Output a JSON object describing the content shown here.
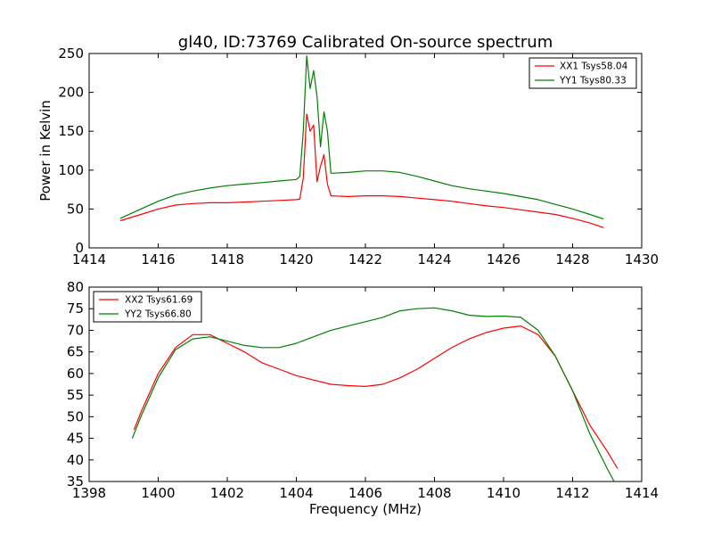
{
  "figure_title": "gl40, ID:73769 Calibrated On-source spectrum",
  "colors": {
    "red": "#ff0000",
    "green": "#008000"
  },
  "chart_data": [
    {
      "type": "line",
      "title": "gl40, ID:73769 Calibrated On-source spectrum",
      "xlabel": "",
      "ylabel": "Power in Kelvin",
      "xlim": [
        1414,
        1430
      ],
      "ylim": [
        0,
        250
      ],
      "xticks": [
        "1414",
        "1416",
        "1418",
        "1420",
        "1422",
        "1424",
        "1426",
        "1428",
        "1430"
      ],
      "yticks": [
        "0",
        "50",
        "100",
        "150",
        "200",
        "250"
      ],
      "legend_position": "top-right",
      "series": [
        {
          "name": "XX1 Tsys58.04",
          "color": "#ff0000",
          "x": [
            1414.9,
            1415.5,
            1416,
            1416.5,
            1417,
            1417.5,
            1418,
            1418.5,
            1419,
            1419.5,
            1420,
            1420.1,
            1420.2,
            1420.3,
            1420.4,
            1420.5,
            1420.6,
            1420.7,
            1420.8,
            1420.9,
            1421,
            1421.5,
            1422,
            1422.5,
            1423,
            1423.5,
            1424,
            1424.5,
            1425,
            1425.5,
            1426,
            1426.5,
            1427,
            1427.5,
            1428,
            1428.5,
            1428.9
          ],
          "y": [
            35,
            43,
            50,
            55,
            57,
            58,
            58,
            59,
            60,
            61,
            62,
            63,
            90,
            172,
            150,
            158,
            85,
            105,
            120,
            82,
            67,
            66,
            67,
            67,
            66,
            64,
            62,
            60,
            57,
            54,
            52,
            49,
            46,
            43,
            38,
            32,
            26
          ]
        },
        {
          "name": "YY1 Tsys80.33",
          "color": "#008000",
          "x": [
            1414.9,
            1415.5,
            1416,
            1416.5,
            1417,
            1417.5,
            1418,
            1418.5,
            1419,
            1419.5,
            1420,
            1420.1,
            1420.2,
            1420.3,
            1420.4,
            1420.5,
            1420.6,
            1420.7,
            1420.8,
            1420.9,
            1421,
            1421.5,
            1422,
            1422.5,
            1423,
            1423.5,
            1424,
            1424.5,
            1425,
            1425.5,
            1426,
            1426.5,
            1427,
            1427.5,
            1428,
            1428.5,
            1428.9
          ],
          "y": [
            38,
            50,
            60,
            68,
            73,
            77,
            80,
            82,
            84,
            86,
            88,
            92,
            150,
            247,
            205,
            228,
            195,
            130,
            175,
            150,
            96,
            97,
            99,
            99,
            97,
            92,
            86,
            80,
            76,
            73,
            70,
            66,
            62,
            56,
            50,
            43,
            37
          ]
        }
      ]
    },
    {
      "type": "line",
      "title": "",
      "xlabel": "Frequency (MHz)",
      "ylabel": "",
      "xlim": [
        1398,
        1414
      ],
      "ylim": [
        35,
        80
      ],
      "xticks": [
        "1398",
        "1400",
        "1402",
        "1404",
        "1406",
        "1408",
        "1410",
        "1412",
        "1414"
      ],
      "yticks": [
        "35",
        "40",
        "45",
        "50",
        "55",
        "60",
        "65",
        "70",
        "75",
        "80"
      ],
      "legend_position": "top-left",
      "series": [
        {
          "name": "XX2 Tsys61.69",
          "color": "#ff0000",
          "x": [
            1399.3,
            1399.5,
            1400,
            1400.5,
            1401,
            1401.5,
            1402,
            1402.5,
            1403,
            1403.5,
            1404,
            1404.5,
            1405,
            1405.5,
            1406,
            1406.5,
            1407,
            1407.5,
            1408,
            1408.5,
            1409,
            1409.5,
            1410,
            1410.5,
            1411,
            1411.5,
            1412,
            1412.5,
            1413,
            1413.3
          ],
          "y": [
            47,
            51,
            60,
            66,
            69,
            69,
            67,
            65,
            62.5,
            61,
            59.5,
            58.5,
            57.5,
            57.2,
            57,
            57.5,
            59,
            61,
            63.5,
            66,
            68,
            69.5,
            70.5,
            71,
            69,
            64,
            56,
            48,
            42,
            38
          ]
        },
        {
          "name": "YY2 Tsys66.80",
          "color": "#008000",
          "x": [
            1399.25,
            1399.5,
            1400,
            1400.5,
            1401,
            1401.5,
            1402,
            1402.5,
            1403,
            1403.5,
            1404,
            1404.5,
            1405,
            1405.5,
            1406,
            1406.5,
            1407,
            1407.5,
            1408,
            1408.5,
            1409,
            1409.5,
            1410,
            1410.5,
            1411,
            1411.5,
            1412,
            1412.5,
            1413,
            1413.2
          ],
          "y": [
            45,
            50,
            59,
            65.5,
            68,
            68.5,
            67.5,
            66.5,
            66,
            66,
            67,
            68.5,
            70,
            71,
            72,
            73,
            74.5,
            75,
            75.2,
            74.5,
            73.5,
            73.2,
            73.3,
            73,
            70,
            64,
            56,
            46,
            38,
            35
          ]
        }
      ]
    }
  ]
}
